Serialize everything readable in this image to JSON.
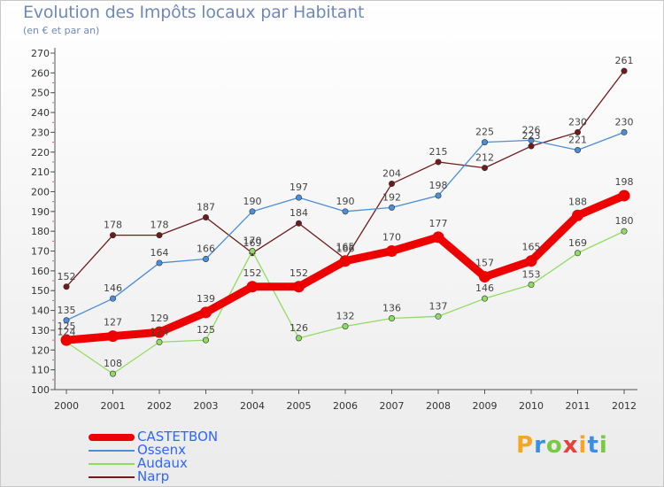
{
  "chart_data": {
    "type": "line",
    "title": "Evolution des Impôts locaux par Habitant",
    "subtitle": "(en € et par an)",
    "x": [
      "2000",
      "2001",
      "2002",
      "2003",
      "2004",
      "2005",
      "2006",
      "2007",
      "2008",
      "2009",
      "2010",
      "2011",
      "2012"
    ],
    "ylim": [
      100,
      270
    ],
    "yticks": [
      100,
      110,
      120,
      130,
      140,
      150,
      160,
      170,
      180,
      190,
      200,
      210,
      220,
      230,
      240,
      250,
      260,
      270
    ],
    "series": [
      {
        "name": "CASTETBON",
        "color": "#ee0000",
        "values": [
          125,
          127,
          129,
          139,
          152,
          152,
          165,
          170,
          177,
          157,
          165,
          188,
          198
        ]
      },
      {
        "name": "Ossenx",
        "color": "#4a8fd8",
        "values": [
          135,
          146,
          164,
          166,
          190,
          197,
          190,
          192,
          198,
          225,
          226,
          221,
          230
        ]
      },
      {
        "name": "Audaux",
        "color": "#90dc60",
        "values": [
          124,
          108,
          124,
          125,
          170,
          126,
          132,
          136,
          137,
          146,
          153,
          169,
          180
        ]
      },
      {
        "name": "Narp",
        "color": "#701a1a",
        "values": [
          152,
          178,
          178,
          187,
          169,
          184,
          166,
          204,
          215,
          212,
          223,
          230,
          261
        ]
      }
    ],
    "legend": "bottom-left",
    "grid": false
  },
  "logo": {
    "letters": [
      "P",
      "r",
      "o",
      "x",
      "i",
      "t",
      "i"
    ],
    "colors": [
      "#f5a623",
      "#3a8ee6",
      "#7ac943",
      "#e8413c",
      "#f5a623",
      "#3a8ee6",
      "#7ac943"
    ]
  }
}
